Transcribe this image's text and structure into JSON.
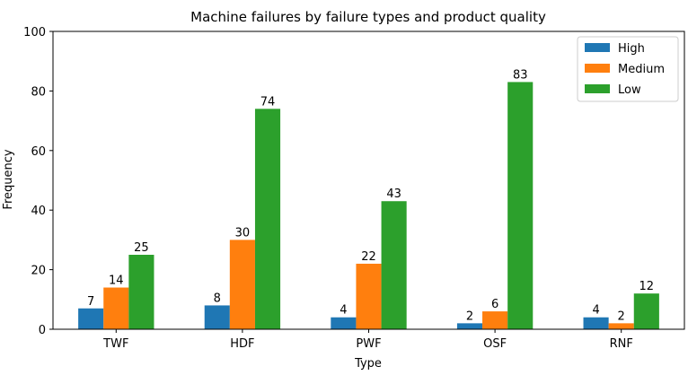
{
  "chart_data": {
    "type": "bar",
    "title": "Machine failures by failure types and product quality",
    "xlabel": "Type",
    "ylabel": "Frequency",
    "categories": [
      "TWF",
      "HDF",
      "PWF",
      "OSF",
      "RNF"
    ],
    "series": [
      {
        "name": "High",
        "values": [
          7,
          8,
          4,
          2,
          4
        ],
        "color": "#1f77b4"
      },
      {
        "name": "Medium",
        "values": [
          14,
          30,
          22,
          6,
          2
        ],
        "color": "#ff7f0e"
      },
      {
        "name": "Low",
        "values": [
          25,
          74,
          43,
          83,
          12
        ],
        "color": "#2ca02c"
      }
    ],
    "ylim": [
      0,
      100
    ],
    "yticks": [
      0,
      20,
      40,
      60,
      80,
      100
    ],
    "grid": false,
    "legend_position": "top-right"
  }
}
